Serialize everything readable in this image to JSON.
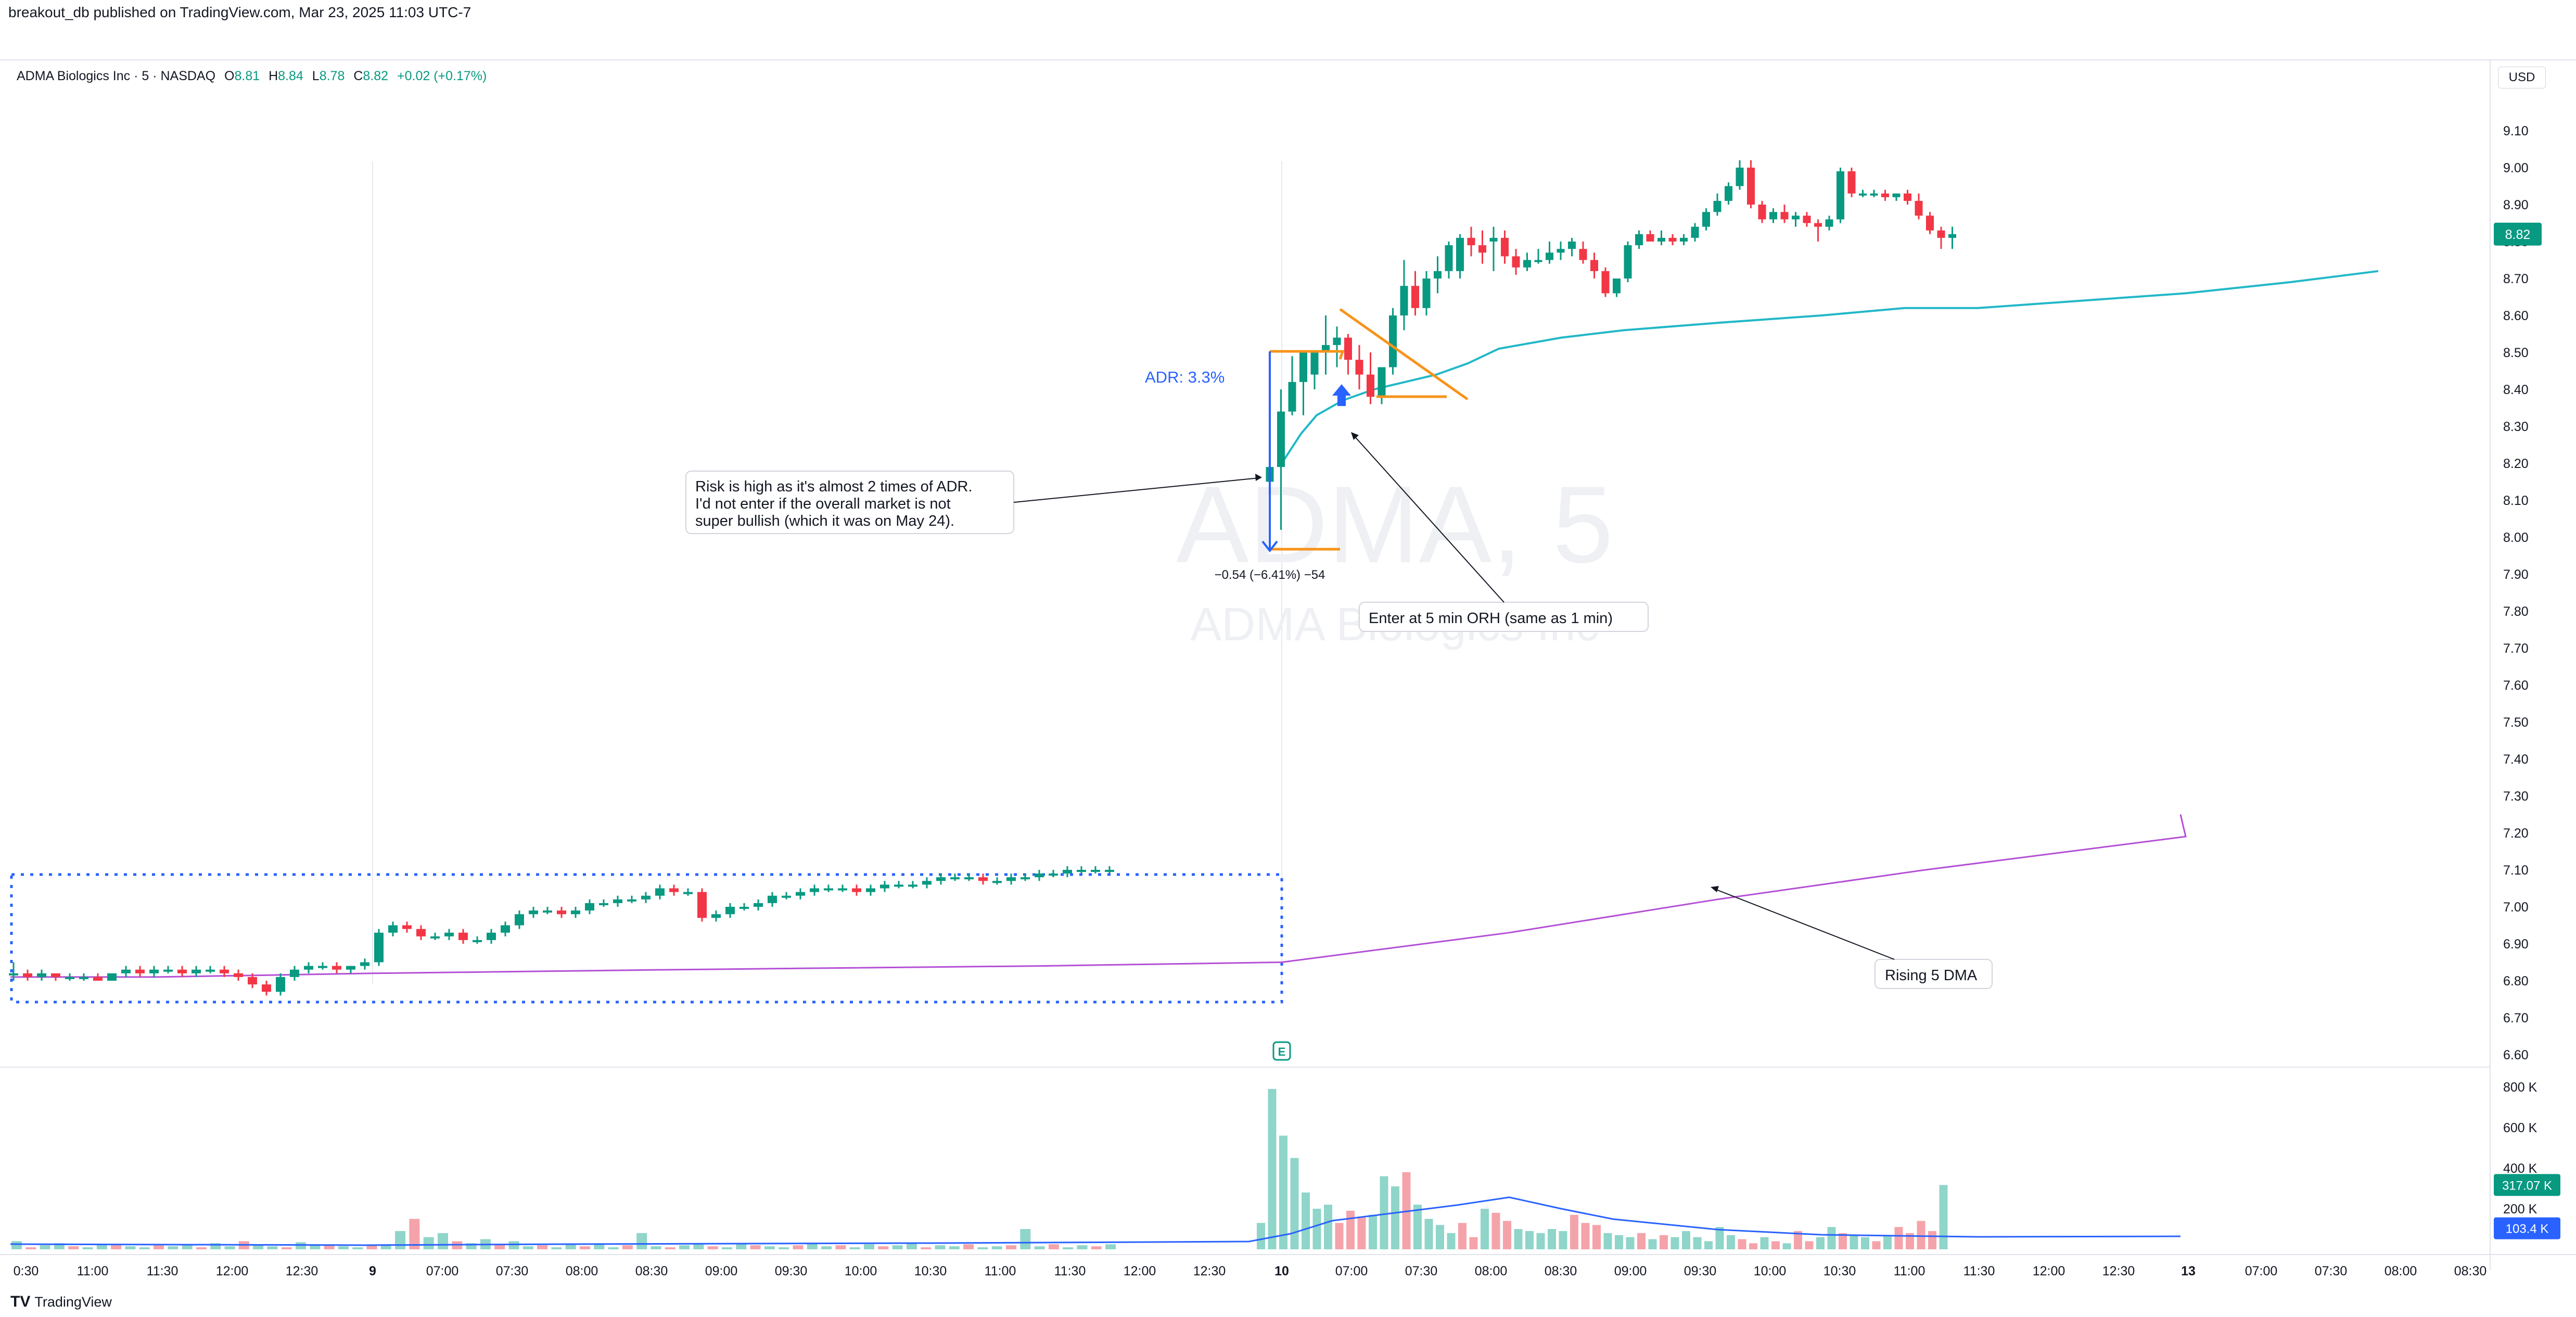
{
  "header": {
    "published": "breakout_db published on TradingView.com, Mar 23, 2025 11:03 UTC-7"
  },
  "legend": {
    "symbol": "ADMA Biologics Inc · 5 · NASDAQ",
    "open_label": "O",
    "open": "8.81",
    "high_label": "H",
    "high": "8.84",
    "low_label": "L",
    "low": "8.78",
    "close_label": "C",
    "close": "8.82",
    "change": "+0.02 (+0.17%)"
  },
  "currency": "USD",
  "brand": {
    "logo": "TV",
    "name": "TradingView"
  },
  "watermark": {
    "ticker": "ADMA, 5",
    "name": "ADMA Biologics Inc"
  },
  "colors": {
    "up": "#089981",
    "down": "#f23645",
    "ema": "#22b8c8",
    "dma": "#b44fd6",
    "annot": "#f7931a",
    "measure": "#2962ff",
    "vol_ma": "#2962ff"
  },
  "annotations": {
    "risk_note": [
      "Risk is high as it's almost 2 times of ADR.",
      "I'd not enter if the overall market is not",
      "super bullish (which it was on May 24)."
    ],
    "adr": "ADR: 3.3%",
    "measure": "−0.54 (−6.41%) −54",
    "entry_note": "Enter at 5 min ORH (same as 1 min)",
    "dma_note": "Rising 5 DMA",
    "earnings_marker": "E"
  },
  "chart_data": {
    "type": "candlestick",
    "price_ticks": [
      "9.10",
      "9.00",
      "8.90",
      "8.80",
      "8.70",
      "8.60",
      "8.50",
      "8.40",
      "8.30",
      "8.20",
      "8.10",
      "8.00",
      "7.90",
      "7.80",
      "7.70",
      "7.60",
      "7.50",
      "7.40",
      "7.30",
      "7.20",
      "7.10",
      "7.00",
      "6.90",
      "6.80",
      "6.70",
      "6.60"
    ],
    "price_tick_values": [
      9.1,
      9.0,
      8.9,
      8.8,
      8.7,
      8.6,
      8.5,
      8.4,
      8.3,
      8.2,
      8.1,
      8.0,
      7.9,
      7.8,
      7.7,
      7.6,
      7.5,
      7.4,
      7.3,
      7.2,
      7.1,
      7.0,
      6.9,
      6.8,
      6.7,
      6.6
    ],
    "ylim": [
      6.56,
      9.23
    ],
    "time_ticks": [
      "0:30",
      "11:00",
      "11:30",
      "12:00",
      "12:30",
      "9",
      "07:00",
      "07:30",
      "08:00",
      "08:30",
      "09:00",
      "09:30",
      "10:00",
      "10:30",
      "11:00",
      "11:30",
      "12:00",
      "12:30",
      "10",
      "07:00",
      "07:30",
      "08:00",
      "08:30",
      "09:00",
      "09:30",
      "10:00",
      "10:30",
      "11:00",
      "11:30",
      "12:00",
      "12:30",
      "13",
      "07:00",
      "07:30",
      "08:00",
      "08:30"
    ],
    "last_price": "8.82",
    "last_price_value": 8.82,
    "volume_ticks": [
      "800 K",
      "600 K",
      "400 K",
      "200 K"
    ],
    "volume_tick_values": [
      800000,
      600000,
      400000,
      200000
    ],
    "volume_ylim": [
      0,
      860000
    ],
    "volume_last": "317.07 K",
    "volume_ma_last": "103.4 K",
    "volume_last_value": 317070,
    "volume_ma_last_value": 103400,
    "day1": {
      "candles": [
        [
          6.82,
          6.85,
          6.8,
          6.82
        ],
        [
          6.82,
          6.83,
          6.8,
          6.81
        ],
        [
          6.81,
          6.83,
          6.8,
          6.82
        ],
        [
          6.82,
          6.82,
          6.8,
          6.81
        ],
        [
          6.81,
          6.82,
          6.8,
          6.81
        ],
        [
          6.81,
          6.82,
          6.8,
          6.81
        ],
        [
          6.81,
          6.82,
          6.8,
          6.8
        ],
        [
          6.8,
          6.82,
          6.8,
          6.82
        ],
        [
          6.82,
          6.84,
          6.81,
          6.83
        ],
        [
          6.83,
          6.84,
          6.81,
          6.82
        ],
        [
          6.82,
          6.84,
          6.81,
          6.83
        ],
        [
          6.83,
          6.84,
          6.82,
          6.83
        ],
        [
          6.83,
          6.84,
          6.81,
          6.82
        ],
        [
          6.82,
          6.84,
          6.81,
          6.83
        ],
        [
          6.83,
          6.84,
          6.82,
          6.83
        ],
        [
          6.83,
          6.84,
          6.81,
          6.82
        ],
        [
          6.82,
          6.83,
          6.8,
          6.81
        ],
        [
          6.81,
          6.82,
          6.78,
          6.79
        ],
        [
          6.79,
          6.8,
          6.76,
          6.77
        ],
        [
          6.77,
          6.82,
          6.76,
          6.81
        ],
        [
          6.81,
          6.84,
          6.8,
          6.83
        ],
        [
          6.83,
          6.85,
          6.82,
          6.84
        ],
        [
          6.84,
          6.85,
          6.83,
          6.84
        ],
        [
          6.84,
          6.85,
          6.82,
          6.83
        ],
        [
          6.83,
          6.84,
          6.82,
          6.84
        ],
        [
          6.84,
          6.86,
          6.83,
          6.85
        ]
      ],
      "ema": [
        [
          6.8,
          6.8
        ],
        [
          6.8,
          6.79
        ],
        [
          6.8,
          6.79
        ],
        [
          6.82,
          6.79
        ],
        [
          6.85,
          6.79
        ],
        [
          6.88,
          6.79
        ],
        [
          6.91,
          6.8
        ],
        [
          6.93,
          6.8
        ]
      ],
      "dma": [
        [
          6.8,
          6.8
        ],
        [
          6.82,
          6.8
        ],
        [
          6.85,
          6.8
        ],
        [
          6.88,
          6.81
        ],
        [
          6.93,
          6.81
        ]
      ]
    }
  }
}
